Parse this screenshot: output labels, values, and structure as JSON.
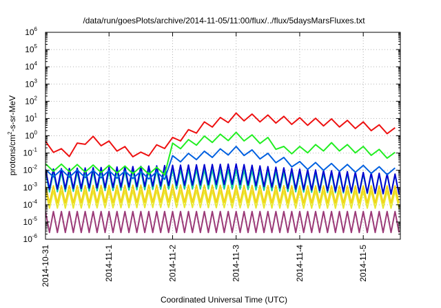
{
  "chart_data": {
    "type": "line",
    "title": "/data/run/goesPlots/archive/2014-11-05/11:00/flux/../flux/5daysMarsFluxes.txt",
    "xlabel": "Coordinated Universal Time (UTC)",
    "ylabel": {
      "base": "protons/cm",
      "sup": "2",
      "rest": "-s-sr-MeV"
    },
    "yscale": "log",
    "ylim": [
      1e-06,
      1000000.0
    ],
    "xlim": [
      "2014-10-31T00:00",
      "2014-11-05T14:00"
    ],
    "grid": true,
    "x_ticks": [
      {
        "x": "2014-10-31",
        "label": "2014-10-31"
      },
      {
        "x": "2014-11-01",
        "label": "2014-11-1"
      },
      {
        "x": "2014-11-02",
        "label": "2014-11-2"
      },
      {
        "x": "2014-11-03",
        "label": "2014-11-3"
      },
      {
        "x": "2014-11-04",
        "label": "2014-11-4"
      },
      {
        "x": "2014-11-05",
        "label": "2014-11-5"
      }
    ],
    "y_ticks": [
      {
        "exp": -6,
        "base": "10",
        "sup": "-6"
      },
      {
        "exp": -5,
        "base": "10",
        "sup": "-5"
      },
      {
        "exp": -4,
        "base": "10",
        "sup": "-4"
      },
      {
        "exp": -3,
        "base": "10",
        "sup": "-3"
      },
      {
        "exp": -2,
        "base": "10",
        "sup": "-2"
      },
      {
        "exp": -1,
        "base": "10",
        "sup": "-1"
      },
      {
        "exp": 0,
        "base": "10",
        "sup": "0"
      },
      {
        "exp": 1,
        "base": "10",
        "sup": "1"
      },
      {
        "exp": 2,
        "base": "10",
        "sup": "2"
      },
      {
        "exp": 3,
        "base": "10",
        "sup": "3"
      },
      {
        "exp": 4,
        "base": "10",
        "sup": "4"
      },
      {
        "exp": 5,
        "base": "10",
        "sup": "5"
      },
      {
        "exp": 6,
        "base": "10",
        "sup": "6"
      }
    ],
    "series": [
      {
        "color": "#9b3a78",
        "points": [
          [
            "2014-10-31T00:00",
            1e-05
          ],
          [
            "2014-11-02T00:00",
            1e-05
          ],
          [
            "2014-11-04T00:00",
            1e-05
          ],
          [
            "2014-11-05T14:00",
            1e-05
          ]
        ],
        "sawtooth": {
          "period_hours": 3,
          "low": 6e-06,
          "high": 0.0001
        }
      },
      {
        "color": "#e8e830",
        "points": [
          [
            "2014-10-31T00:00",
            0.0002
          ],
          [
            "2014-11-02T00:00",
            0.00022
          ],
          [
            "2014-11-04T00:00",
            0.0002
          ],
          [
            "2014-11-05T14:00",
            0.0002
          ]
        ],
        "sawtooth": {
          "period_hours": 3,
          "low": 5e-05,
          "high": 0.0005
        }
      },
      {
        "color": "#f2d21a",
        "points": [
          [
            "2014-10-31T00:00",
            0.0004
          ],
          [
            "2014-11-02T00:00",
            0.00045
          ],
          [
            "2014-11-04T00:00",
            0.0004
          ],
          [
            "2014-11-05T14:00",
            0.0004
          ]
        ],
        "sawtooth": {
          "period_hours": 3,
          "low": 0.0001,
          "high": 0.001
        }
      },
      {
        "color": "#10c8a0",
        "points": [
          [
            "2014-10-31T00:00",
            0.002
          ],
          [
            "2014-11-02T00:00",
            0.003
          ],
          [
            "2014-11-03T00:00",
            0.003
          ],
          [
            "2014-11-04T00:00",
            0.002
          ],
          [
            "2014-11-05T14:00",
            0.0015
          ]
        ],
        "sawtooth": {
          "period_hours": 3,
          "low": 0.0003,
          "high": 0.004
        }
      },
      {
        "color": "#0000d0",
        "points": [
          [
            "2014-10-31T00:00",
            0.003
          ],
          [
            "2014-11-02T00:00",
            0.005
          ],
          [
            "2014-11-03T00:00",
            0.006
          ],
          [
            "2014-11-04T00:00",
            0.003
          ],
          [
            "2014-11-05T14:00",
            0.0015
          ]
        ],
        "sawtooth": {
          "period_hours": 3,
          "low": 0.001,
          "high": 0.015
        }
      },
      {
        "color": "#0060e0",
        "points": [
          [
            "2014-10-31T00:00",
            0.007
          ],
          [
            "2014-11-01T00:00",
            0.006
          ],
          [
            "2014-11-01T21:00",
            0.005
          ],
          [
            "2014-11-01T22:00",
            0.04
          ],
          [
            "2014-11-02T12:00",
            0.08
          ],
          [
            "2014-11-03T00:00",
            0.15
          ],
          [
            "2014-11-03T12:00",
            0.06
          ],
          [
            "2014-11-04T00:00",
            0.02
          ],
          [
            "2014-11-05T00:00",
            0.012
          ],
          [
            "2014-11-05T14:00",
            0.008
          ]
        ],
        "sawtooth": {
          "period_hours": 6,
          "low": 0.6,
          "high": 1.6
        }
      },
      {
        "color": "#22ee22",
        "points": [
          [
            "2014-10-31T00:00",
            0.015
          ],
          [
            "2014-11-01T00:00",
            0.012
          ],
          [
            "2014-11-01T21:00",
            0.009
          ],
          [
            "2014-11-01T22:00",
            0.2
          ],
          [
            "2014-11-02T12:00",
            0.6
          ],
          [
            "2014-11-03T00:00",
            1.0
          ],
          [
            "2014-11-03T12:00",
            0.5
          ],
          [
            "2014-11-03T18:00",
            0.15
          ],
          [
            "2014-11-04T00:00",
            0.15
          ],
          [
            "2014-11-04T12:00",
            0.25
          ],
          [
            "2014-11-05T00:00",
            0.15
          ],
          [
            "2014-11-05T14:00",
            0.06
          ]
        ],
        "sawtooth": {
          "period_hours": 6,
          "low": 0.6,
          "high": 1.6
        }
      },
      {
        "color": "#ee1111",
        "points": [
          [
            "2014-10-31T00:00",
            0.3
          ],
          [
            "2014-10-31T08:00",
            0.08
          ],
          [
            "2014-10-31T16:00",
            0.7
          ],
          [
            "2014-10-31T22:00",
            0.4
          ],
          [
            "2014-11-01T12:00",
            0.07
          ],
          [
            "2014-11-02T00:00",
            0.5
          ],
          [
            "2014-11-02T12:00",
            4.0
          ],
          [
            "2014-11-03T00:00",
            13.0
          ],
          [
            "2014-11-03T12:00",
            10.0
          ],
          [
            "2014-11-04T00:00",
            7.0
          ],
          [
            "2014-11-04T12:00",
            6.0
          ],
          [
            "2014-11-05T00:00",
            4.0
          ],
          [
            "2014-11-05T14:00",
            1.6
          ]
        ],
        "sawtooth": {
          "period_hours": 6,
          "low": 0.6,
          "high": 1.6
        }
      }
    ]
  }
}
